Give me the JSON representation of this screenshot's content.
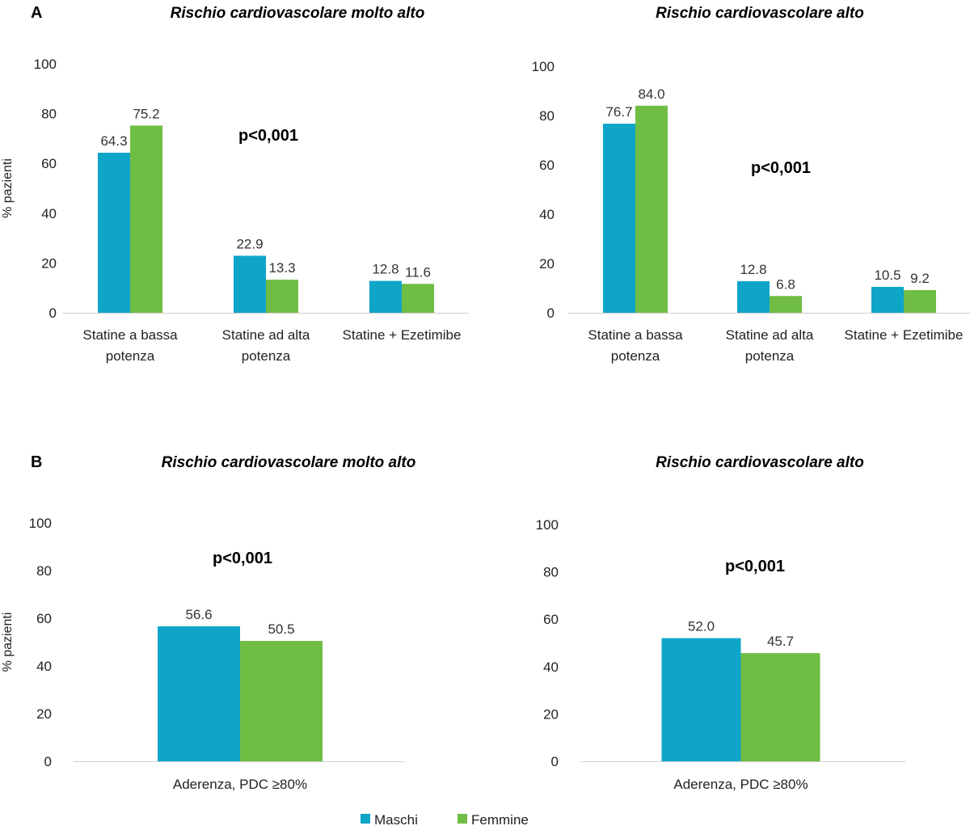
{
  "panels": {
    "A": "A",
    "B": "B"
  },
  "colors": {
    "maschi": "#0ea5c8",
    "femmine": "#70bd44",
    "axis": "#d0d0d0"
  },
  "legend": {
    "maschi": "Maschi",
    "femmine": "Femmine"
  },
  "chart_data": [
    {
      "type": "bar",
      "panel": "A",
      "title": "Rischio cardiovascolare molto alto",
      "ylabel": "% pazienti",
      "ylim": [
        0,
        100
      ],
      "yticks": [
        0,
        20,
        40,
        60,
        80,
        100
      ],
      "categories": [
        [
          "Statine a bassa",
          "potenza"
        ],
        [
          "Statine ad alta",
          "potenza"
        ],
        [
          "Statine + Ezetimibe"
        ]
      ],
      "series": [
        {
          "name": "Maschi",
          "values": [
            64.3,
            22.9,
            12.8
          ]
        },
        {
          "name": "Femmine",
          "values": [
            75.2,
            13.3,
            11.6
          ]
        }
      ],
      "data_labels": [
        [
          "64.3",
          "22.9",
          "12.8"
        ],
        [
          "75.2",
          "13.3",
          "11.6"
        ]
      ],
      "annotation": "p<0,001"
    },
    {
      "type": "bar",
      "panel": "A",
      "title": "Rischio cardiovascolare alto",
      "ylabel": "",
      "ylim": [
        0,
        100
      ],
      "yticks": [
        0,
        20,
        40,
        60,
        80,
        100
      ],
      "categories": [
        [
          "Statine a bassa",
          "potenza"
        ],
        [
          "Statine ad alta",
          "potenza"
        ],
        [
          "Statine + Ezetimibe"
        ]
      ],
      "series": [
        {
          "name": "Maschi",
          "values": [
            76.7,
            12.8,
            10.5
          ]
        },
        {
          "name": "Femmine",
          "values": [
            84.0,
            6.8,
            9.2
          ]
        }
      ],
      "data_labels": [
        [
          "76.7",
          "12.8",
          "10.5"
        ],
        [
          "84.0",
          "6.8",
          "9.2"
        ]
      ],
      "annotation": "p<0,001"
    },
    {
      "type": "bar",
      "panel": "B",
      "title": "Rischio cardiovascolare molto alto",
      "ylabel": "% pazienti",
      "ylim": [
        0,
        100
      ],
      "yticks": [
        0,
        20,
        40,
        60,
        80,
        100
      ],
      "categories": [
        [
          "Aderenza, PDC ≥80%"
        ]
      ],
      "series": [
        {
          "name": "Maschi",
          "values": [
            56.6
          ]
        },
        {
          "name": "Femmine",
          "values": [
            50.5
          ]
        }
      ],
      "data_labels": [
        [
          "56.6"
        ],
        [
          "50.5"
        ]
      ],
      "annotation": "p<0,001"
    },
    {
      "type": "bar",
      "panel": "B",
      "title": "Rischio cardiovascolare alto",
      "ylabel": "",
      "ylim": [
        0,
        100
      ],
      "yticks": [
        0,
        20,
        40,
        60,
        80,
        100
      ],
      "categories": [
        [
          "Aderenza, PDC ≥80%"
        ]
      ],
      "series": [
        {
          "name": "Maschi",
          "values": [
            52.0
          ]
        },
        {
          "name": "Femmine",
          "values": [
            45.7
          ]
        }
      ],
      "data_labels": [
        [
          "52.0"
        ],
        [
          "45.7"
        ]
      ],
      "annotation": "p<0,001"
    }
  ]
}
